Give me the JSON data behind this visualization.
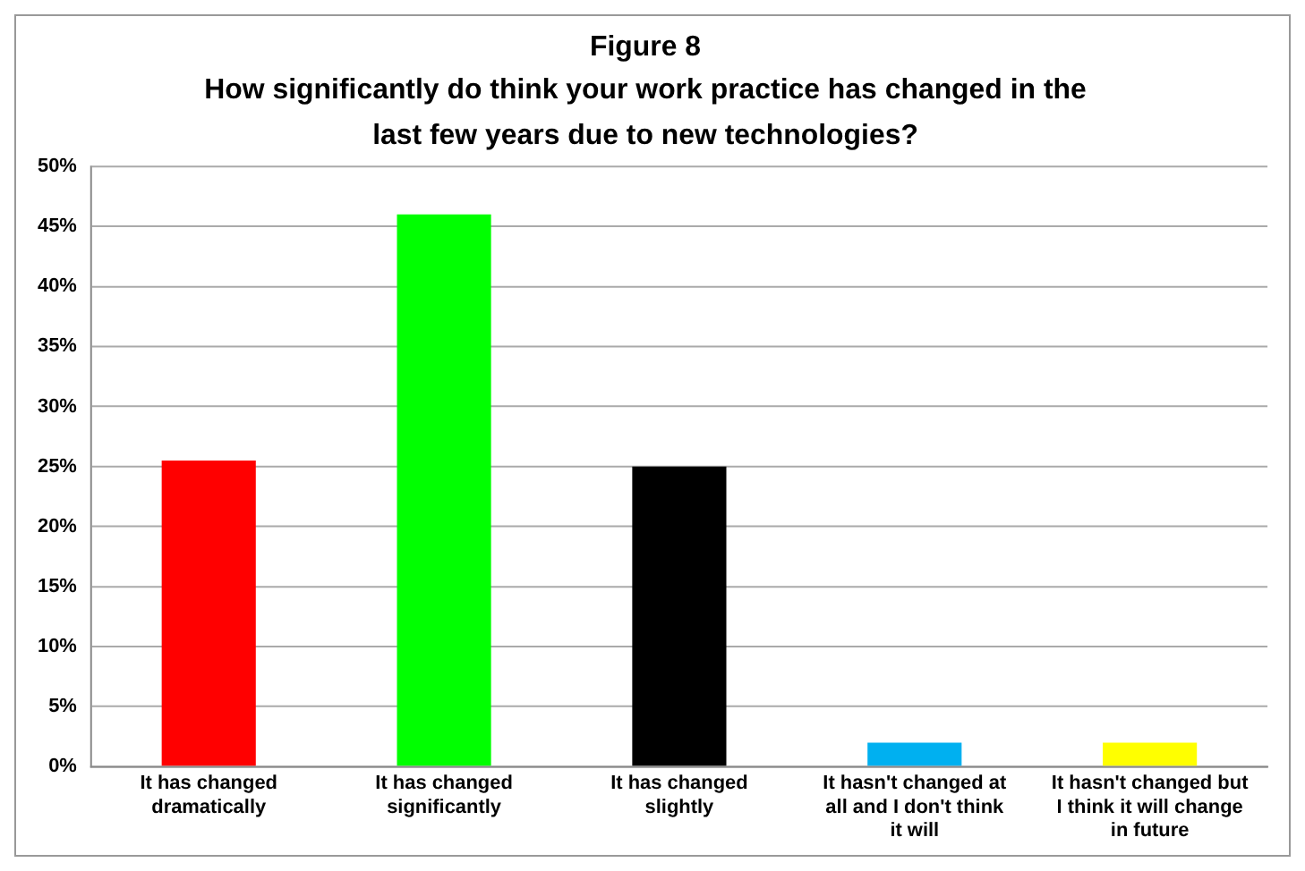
{
  "chart_data": {
    "type": "bar",
    "title": "Figure 8",
    "subtitle": "How significantly do think your work practice has changed in the last few years due to new technologies?",
    "categories": [
      "It has changed dramatically",
      "It has changed significantly",
      "It has changed slightly",
      "It hasn't changed at all and I don't think it will",
      "It hasn't changed but I think it will change in future"
    ],
    "values": [
      25.5,
      46,
      25,
      2,
      2
    ],
    "colors": [
      "#ff0000",
      "#00ff00",
      "#000000",
      "#00b0f0",
      "#ffff00"
    ],
    "ylim": [
      0,
      50
    ],
    "yticks": [
      {
        "value": 0,
        "label": "0%"
      },
      {
        "value": 5,
        "label": "5%"
      },
      {
        "value": 10,
        "label": "10%"
      },
      {
        "value": 15,
        "label": "15%"
      },
      {
        "value": 20,
        "label": "20%"
      },
      {
        "value": 25,
        "label": "25%"
      },
      {
        "value": 30,
        "label": "30%"
      },
      {
        "value": 35,
        "label": "35%"
      },
      {
        "value": 40,
        "label": "40%"
      },
      {
        "value": 45,
        "label": "45%"
      },
      {
        "value": 50,
        "label": "50%"
      }
    ],
    "grid": "y",
    "legend": false
  }
}
